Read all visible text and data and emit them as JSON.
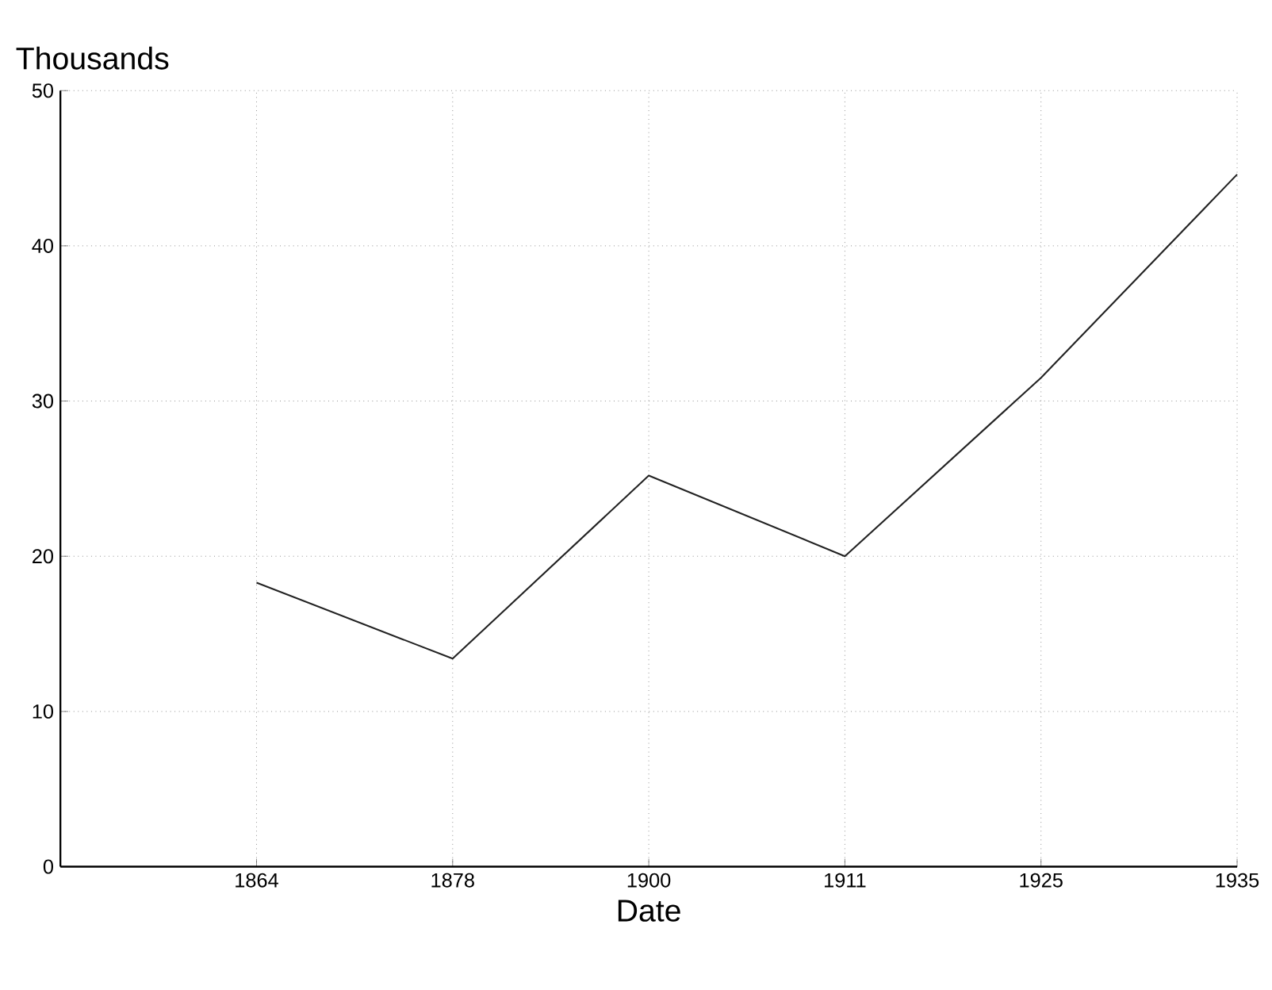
{
  "chart_data": {
    "type": "line",
    "ylabel": "Thousands",
    "xlabel": "Date",
    "categories": [
      "1864",
      "1878",
      "1900",
      "1911",
      "1925",
      "1935"
    ],
    "series": [
      {
        "color": "#222222",
        "values": [
          18.3,
          13.4,
          25.2,
          20.0,
          31.5,
          44.6
        ]
      }
    ],
    "ylim": [
      0,
      50
    ],
    "yticks": [
      0,
      10,
      20,
      30,
      40,
      50
    ],
    "grid": true,
    "marker": "none",
    "line_style": "solid"
  }
}
